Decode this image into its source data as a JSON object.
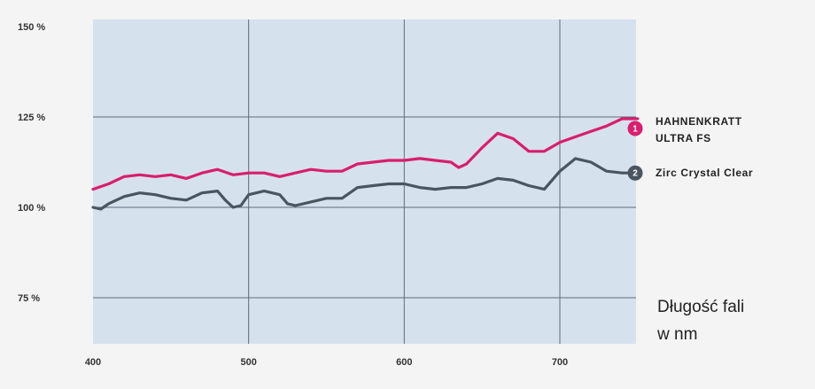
{
  "chart_data": {
    "type": "line",
    "title": "",
    "xlabel": "Długość fali w nm",
    "xlabel_lines": [
      "Długość fali",
      "w nm"
    ],
    "ylabel": "",
    "xlim": [
      400,
      750
    ],
    "ylim": [
      62,
      150
    ],
    "x_ticks": [
      {
        "value": 400,
        "label": "400"
      },
      {
        "value": 500,
        "label": "500"
      },
      {
        "value": 600,
        "label": "600"
      },
      {
        "value": 700,
        "label": "700"
      }
    ],
    "y_ticks": [
      {
        "value": 150,
        "label": "150 %"
      },
      {
        "value": 125,
        "label": "125 %"
      },
      {
        "value": 100,
        "label": "100 %"
      },
      {
        "value": 75,
        "label": "75 %"
      }
    ],
    "grid": true,
    "legend_position": "right",
    "series": [
      {
        "name": "HAHNENKRATT ULTRA FS",
        "label_lines": [
          "HAHNENKRATT",
          "ULTRA FS"
        ],
        "badge": "1",
        "color": "#d81e6e",
        "points": [
          [
            400,
            105
          ],
          [
            410,
            106.5
          ],
          [
            420,
            108.5
          ],
          [
            430,
            109
          ],
          [
            440,
            108.5
          ],
          [
            450,
            109
          ],
          [
            460,
            108
          ],
          [
            470,
            109.5
          ],
          [
            480,
            110.5
          ],
          [
            490,
            109
          ],
          [
            500,
            109.5
          ],
          [
            510,
            109.5
          ],
          [
            520,
            108.5
          ],
          [
            530,
            109.5
          ],
          [
            540,
            110.5
          ],
          [
            550,
            110
          ],
          [
            560,
            110
          ],
          [
            570,
            112
          ],
          [
            580,
            112.5
          ],
          [
            590,
            113
          ],
          [
            600,
            113
          ],
          [
            610,
            113.5
          ],
          [
            620,
            113
          ],
          [
            630,
            112.5
          ],
          [
            635,
            111
          ],
          [
            640,
            112
          ],
          [
            650,
            116.5
          ],
          [
            660,
            120.5
          ],
          [
            670,
            119
          ],
          [
            680,
            115.5
          ],
          [
            690,
            115.5
          ],
          [
            700,
            118
          ],
          [
            710,
            119.5
          ],
          [
            720,
            121
          ],
          [
            730,
            122.5
          ],
          [
            740,
            124.5
          ],
          [
            750,
            124.5
          ]
        ]
      },
      {
        "name": "Zirc Crystal Clear",
        "badge": "2",
        "color": "#4a5560",
        "points": [
          [
            400,
            100
          ],
          [
            405,
            99.5
          ],
          [
            410,
            101
          ],
          [
            420,
            103
          ],
          [
            430,
            104
          ],
          [
            440,
            103.5
          ],
          [
            450,
            102.5
          ],
          [
            460,
            102
          ],
          [
            470,
            104
          ],
          [
            480,
            104.5
          ],
          [
            485,
            102
          ],
          [
            490,
            100
          ],
          [
            495,
            100.5
          ],
          [
            500,
            103.5
          ],
          [
            510,
            104.5
          ],
          [
            520,
            103.5
          ],
          [
            525,
            101
          ],
          [
            530,
            100.5
          ],
          [
            540,
            101.5
          ],
          [
            550,
            102.5
          ],
          [
            560,
            102.5
          ],
          [
            570,
            105.5
          ],
          [
            580,
            106
          ],
          [
            590,
            106.5
          ],
          [
            600,
            106.5
          ],
          [
            610,
            105.5
          ],
          [
            620,
            105
          ],
          [
            630,
            105.5
          ],
          [
            640,
            105.5
          ],
          [
            650,
            106.5
          ],
          [
            660,
            108
          ],
          [
            670,
            107.5
          ],
          [
            680,
            106
          ],
          [
            690,
            105
          ],
          [
            700,
            110
          ],
          [
            710,
            113.5
          ],
          [
            720,
            112.5
          ],
          [
            730,
            110
          ],
          [
            740,
            109.5
          ],
          [
            750,
            109.5
          ]
        ]
      }
    ]
  }
}
